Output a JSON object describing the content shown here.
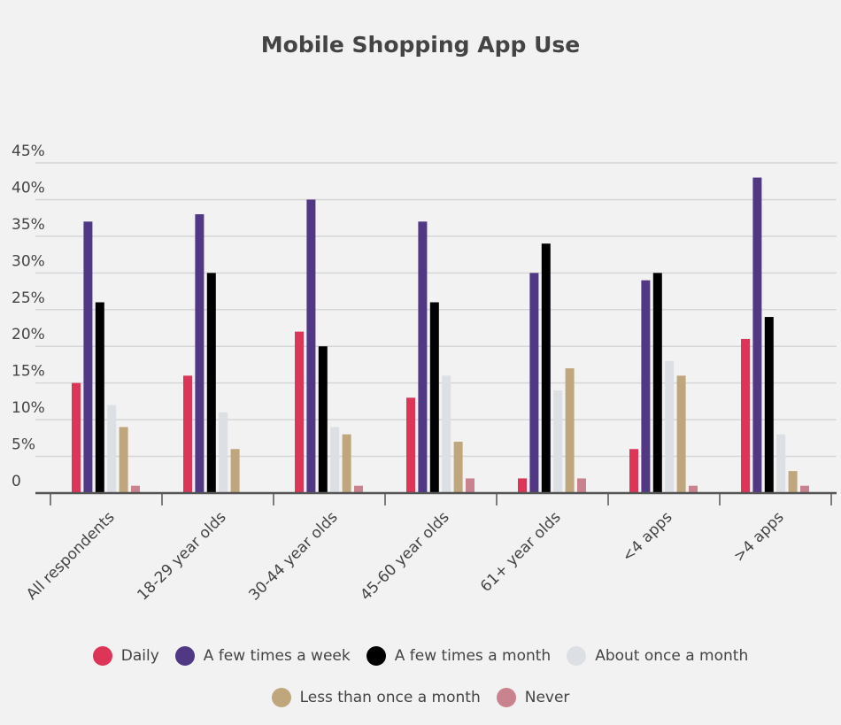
{
  "chart_data": {
    "type": "bar",
    "title": "Mobile Shopping App Use",
    "xlabel": "",
    "ylabel": "",
    "ylim": [
      0,
      45
    ],
    "yticks": [
      0,
      5,
      10,
      15,
      20,
      25,
      30,
      35,
      40,
      45
    ],
    "ytick_labels": [
      "0",
      "5%",
      "10%",
      "15%",
      "20%",
      "25%",
      "30%",
      "35%",
      "40%",
      "45%"
    ],
    "grid": true,
    "legend_placement": "bottom",
    "categories": [
      "All respondents",
      "18-29 year olds",
      "30-44 year olds",
      "45-60 year olds",
      "61+ year olds",
      "<4 apps",
      ">4 apps"
    ],
    "series": [
      {
        "name": "Daily",
        "color": "#dc3558",
        "values": [
          15,
          16,
          22,
          13,
          2,
          6,
          21
        ]
      },
      {
        "name": "A few times a week",
        "color": "#503884",
        "values": [
          37,
          38,
          40,
          37,
          30,
          29,
          43
        ]
      },
      {
        "name": "A few times a month",
        "color": "#000000",
        "values": [
          26,
          30,
          20,
          26,
          34,
          30,
          24
        ]
      },
      {
        "name": "About once a month",
        "color": "#dcdfe3",
        "values": [
          12,
          11,
          9,
          16,
          14,
          18,
          8
        ]
      },
      {
        "name": "Less than once a month",
        "color": "#bfa67d",
        "values": [
          9,
          6,
          8,
          7,
          17,
          16,
          3
        ]
      },
      {
        "name": "Never",
        "color": "#c9838f",
        "values": [
          1,
          0,
          1,
          2,
          2,
          1,
          1
        ]
      }
    ]
  }
}
